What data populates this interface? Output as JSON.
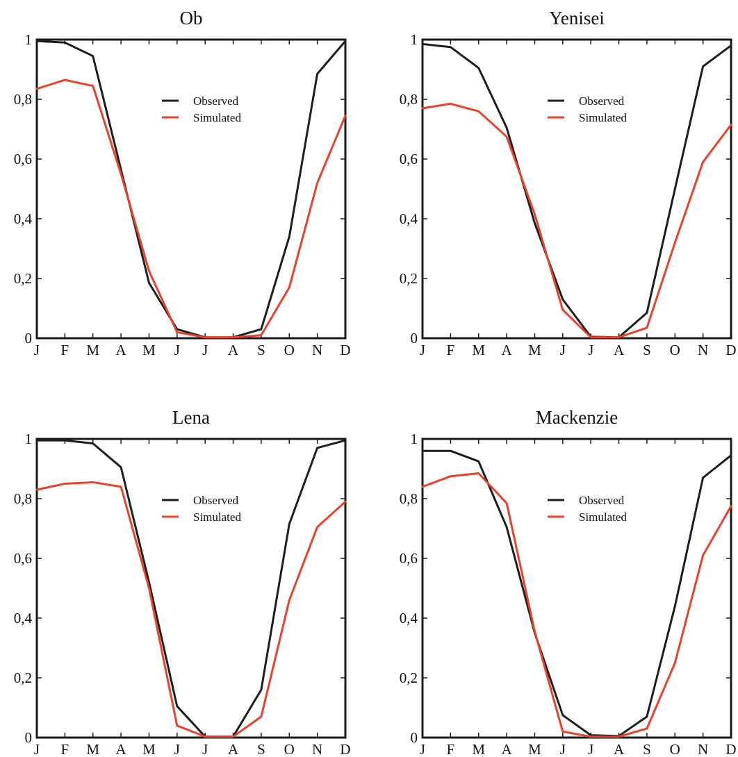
{
  "colors": {
    "observed": "#1e1e1e",
    "simulated": "#e8432a"
  },
  "chart_data": [
    {
      "type": "line",
      "title": "Ob",
      "categories": [
        "J",
        "F",
        "M",
        "A",
        "M",
        "J",
        "J",
        "A",
        "S",
        "O",
        "N",
        "D"
      ],
      "ylim": [
        0,
        1
      ],
      "yticks": [
        "0",
        "0,2",
        "0,4",
        "0,6",
        "0,8",
        "1"
      ],
      "legend": {
        "position": "top-center",
        "entries": [
          "Observed",
          "Simulated"
        ]
      },
      "grid": false,
      "series": [
        {
          "name": "Observed",
          "color": "#1e1e1e",
          "values": [
            0.995,
            0.99,
            0.945,
            0.565,
            0.185,
            0.03,
            0.003,
            0.003,
            0.03,
            0.34,
            0.885,
            0.995
          ]
        },
        {
          "name": "Simulated",
          "color": "#e8432a",
          "values": [
            0.835,
            0.865,
            0.845,
            0.55,
            0.225,
            0.02,
            0.003,
            0.003,
            0.01,
            0.17,
            0.52,
            0.745
          ]
        }
      ]
    },
    {
      "type": "line",
      "title": "Yenisei",
      "categories": [
        "J",
        "F",
        "M",
        "A",
        "M",
        "J",
        "J",
        "A",
        "S",
        "O",
        "N",
        "D"
      ],
      "ylim": [
        0,
        1
      ],
      "yticks": [
        "0",
        "0,2",
        "0,4",
        "0,6",
        "0,8",
        "1"
      ],
      "legend": {
        "position": "top-center",
        "entries": [
          "Observed",
          "Simulated"
        ]
      },
      "grid": false,
      "series": [
        {
          "name": "Observed",
          "color": "#1e1e1e",
          "values": [
            0.985,
            0.975,
            0.905,
            0.705,
            0.385,
            0.13,
            0.005,
            0.003,
            0.085,
            0.5,
            0.91,
            0.98
          ]
        },
        {
          "name": "Simulated",
          "color": "#e8432a",
          "values": [
            0.77,
            0.785,
            0.76,
            0.675,
            0.415,
            0.095,
            0.003,
            0.003,
            0.035,
            0.32,
            0.59,
            0.715
          ]
        }
      ]
    },
    {
      "type": "line",
      "title": "Lena",
      "categories": [
        "J",
        "F",
        "M",
        "A",
        "M",
        "J",
        "J",
        "A",
        "S",
        "O",
        "N",
        "D"
      ],
      "ylim": [
        0,
        1
      ],
      "yticks": [
        "0",
        "0,2",
        "0,4",
        "0,6",
        "0,8",
        "1"
      ],
      "legend": {
        "position": "top-center",
        "entries": [
          "Observed",
          "Simulated"
        ]
      },
      "grid": false,
      "series": [
        {
          "name": "Observed",
          "color": "#1e1e1e",
          "values": [
            0.995,
            0.995,
            0.985,
            0.905,
            0.52,
            0.105,
            0.003,
            0.003,
            0.16,
            0.715,
            0.97,
            0.995
          ]
        },
        {
          "name": "Simulated",
          "color": "#e8432a",
          "values": [
            0.83,
            0.85,
            0.855,
            0.84,
            0.5,
            0.04,
            0.003,
            0.003,
            0.07,
            0.46,
            0.705,
            0.79
          ]
        }
      ]
    },
    {
      "type": "line",
      "title": "Mackenzie",
      "categories": [
        "J",
        "F",
        "M",
        "A",
        "M",
        "J",
        "J",
        "A",
        "S",
        "O",
        "N",
        "D"
      ],
      "ylim": [
        0,
        1
      ],
      "yticks": [
        "0",
        "0,2",
        "0,4",
        "0,6",
        "0,8",
        "1"
      ],
      "legend": {
        "position": "top-center",
        "entries": [
          "Observed",
          "Simulated"
        ]
      },
      "grid": false,
      "series": [
        {
          "name": "Observed",
          "color": "#1e1e1e",
          "values": [
            0.96,
            0.96,
            0.925,
            0.705,
            0.35,
            0.075,
            0.008,
            0.005,
            0.07,
            0.44,
            0.87,
            0.945
          ]
        },
        {
          "name": "Simulated",
          "color": "#e8432a",
          "values": [
            0.84,
            0.875,
            0.885,
            0.785,
            0.355,
            0.02,
            0.003,
            0.003,
            0.03,
            0.25,
            0.61,
            0.775
          ]
        }
      ]
    }
  ]
}
